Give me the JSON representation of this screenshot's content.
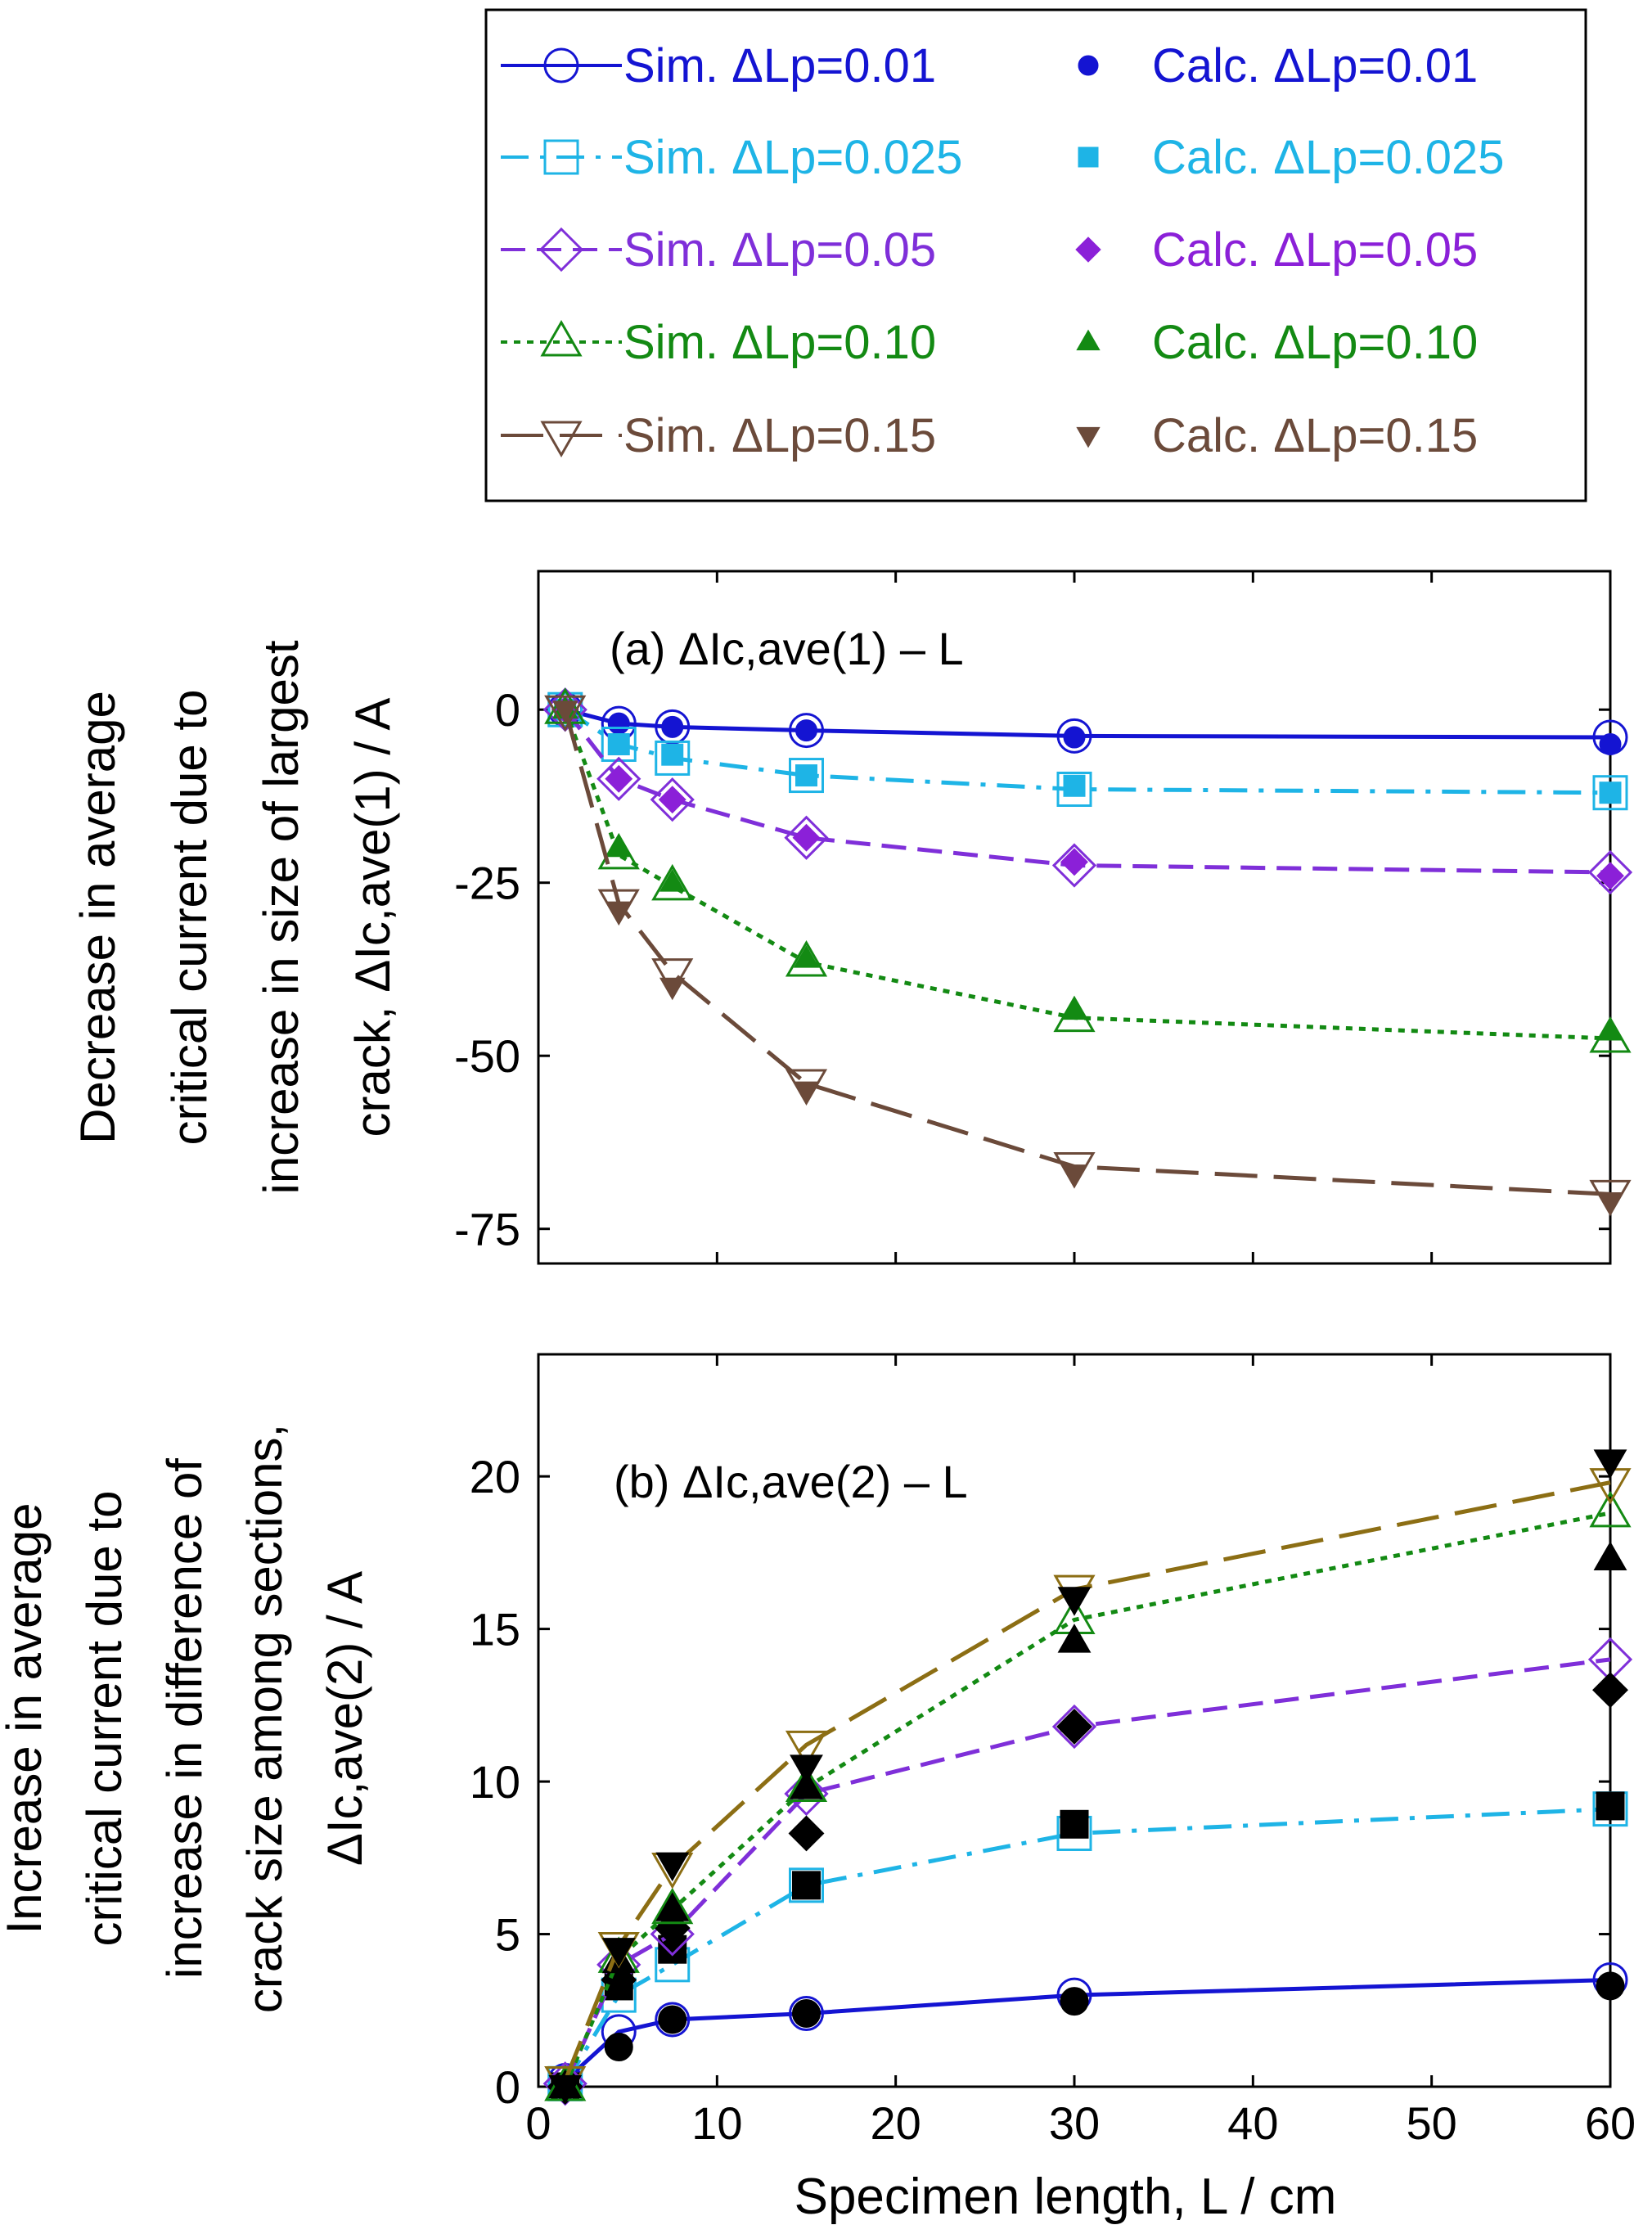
{
  "legend": {
    "items": [
      {
        "label": "Sim. ΔLp=0.01",
        "color": "#1414d2",
        "marker": "circle-open",
        "dash": "solid"
      },
      {
        "label": "Calc. ΔLp=0.01",
        "color": "#1414d2",
        "marker": "circle-filled",
        "dash": "none"
      },
      {
        "label": "Sim. ΔLp=0.025",
        "color": "#1eb4e6",
        "marker": "square-open",
        "dash": "dashdot"
      },
      {
        "label": "Calc. ΔLp=0.025",
        "color": "#1eb4e6",
        "marker": "square-filled",
        "dash": "none"
      },
      {
        "label": "Sim. ΔLp=0.05",
        "color": "#7f2fd9",
        "marker": "diamond-open",
        "dash": "dash"
      },
      {
        "label": "Calc. ΔLp=0.05",
        "color": "#8b20d8",
        "marker": "diamond-filled",
        "dash": "none"
      },
      {
        "label": "Sim. ΔLp=0.10",
        "color": "#138a13",
        "marker": "triangle-up-open",
        "dash": "dot"
      },
      {
        "label": "Calc. ΔLp=0.10",
        "color": "#138a13",
        "marker": "triangle-up-filled",
        "dash": "none"
      },
      {
        "label": "Sim. ΔLp=0.15",
        "color": "#6b4a3a",
        "marker": "triangle-down-open",
        "dash": "longdash"
      },
      {
        "label": "Calc. ΔLp=0.15",
        "color": "#6b4a3a",
        "marker": "triangle-down-filled",
        "dash": "none"
      }
    ]
  },
  "chart_data": [
    {
      "type": "line",
      "title": "(a) ΔIc,ave(1) – L",
      "ylabel": [
        "Decrease in average",
        "critical current due to",
        "increase in size of largest",
        "crack, ΔIc,ave(1) / A"
      ],
      "xlim": [
        0,
        60
      ],
      "ylim": [
        -80,
        20
      ],
      "yticks": [
        0,
        -25,
        -50,
        -75
      ],
      "x": [
        1.5,
        4.5,
        7.5,
        15,
        30,
        60
      ],
      "series": [
        {
          "name": "Sim. ΔLp=0.01",
          "sim": [
            0,
            -2,
            -2.5,
            -3,
            -3.8,
            -4
          ],
          "calc": [
            0,
            -2,
            -2.5,
            -3,
            -4,
            -5
          ]
        },
        {
          "name": "Sim. ΔLp=0.025",
          "sim": [
            0,
            -5,
            -7,
            -9.5,
            -11.5,
            -12
          ],
          "calc": [
            0,
            -5,
            -6.5,
            -9.5,
            -11,
            -12
          ]
        },
        {
          "name": "Sim. ΔLp=0.05",
          "sim": [
            0,
            -10,
            -13,
            -18.5,
            -22.5,
            -23.5
          ],
          "calc": [
            0,
            -10,
            -13,
            -18.5,
            -22,
            -24
          ]
        },
        {
          "name": "Sim. ΔLp=0.10",
          "sim": [
            0,
            -21,
            -25.5,
            -36.5,
            -44.5,
            -47.5
          ],
          "calc": [
            0,
            -20,
            -25,
            -36,
            -43.5,
            -46.5
          ]
        },
        {
          "name": "Sim. ΔLp=0.15",
          "sim": [
            0,
            -28,
            -38,
            -54,
            -66,
            -70
          ],
          "calc": [
            0,
            -29,
            -40,
            -55,
            -67,
            -71
          ]
        }
      ]
    },
    {
      "type": "line",
      "title": "(b) ΔIc,ave(2) – L",
      "ylabel": [
        "Increase in average",
        "critical current due to",
        "increase in difference of",
        "crack size among sections,",
        "ΔIc,ave(2) / A"
      ],
      "xlabel": "Specimen length, L / cm",
      "xlim": [
        0,
        60
      ],
      "ylim": [
        0,
        24
      ],
      "xticks": [
        0,
        10,
        20,
        30,
        40,
        50,
        60
      ],
      "yticks": [
        0,
        5,
        10,
        15,
        20
      ],
      "x": [
        1.5,
        4.5,
        7.5,
        15,
        30,
        60
      ],
      "series": [
        {
          "name": "Sim. ΔLp=0.01",
          "sim": [
            0.2,
            1.8,
            2.2,
            2.4,
            3.0,
            3.5
          ],
          "calc": [
            0,
            1.3,
            2.2,
            2.4,
            2.8,
            3.3
          ]
        },
        {
          "name": "Sim. ΔLp=0.025",
          "sim": [
            0.1,
            3.0,
            4.0,
            6.6,
            8.3,
            9.1
          ],
          "calc": [
            0,
            3.3,
            4.5,
            6.6,
            8.6,
            9.2
          ]
        },
        {
          "name": "Sim. ΔLp=0.05",
          "sim": [
            0.1,
            4.0,
            5.0,
            9.6,
            11.8,
            14.0
          ],
          "calc": [
            0,
            3.5,
            5.2,
            8.3,
            11.8,
            13.0
          ]
        },
        {
          "name": "Sim. ΔLp=0.10",
          "sim": [
            0,
            4.2,
            5.8,
            9.8,
            15.3,
            18.8
          ],
          "calc": [
            0,
            4.1,
            5.8,
            9.8,
            14.6,
            17.3
          ]
        },
        {
          "name": "Sim. ΔLp=0.15",
          "sim": [
            0.2,
            4.6,
            7.2,
            11.2,
            16.3,
            19.8
          ],
          "calc": [
            0,
            4.5,
            7.3,
            10.5,
            16.0,
            20.5
          ]
        }
      ]
    }
  ]
}
